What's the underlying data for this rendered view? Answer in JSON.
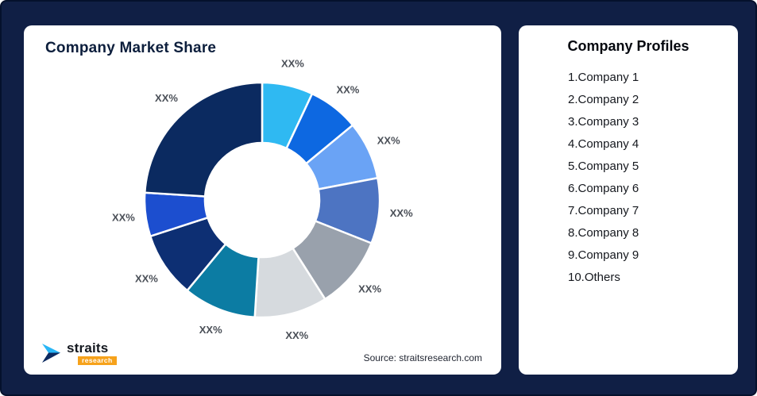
{
  "page": {
    "background_color": "#101f45"
  },
  "left_card": {
    "title": "Company Market Share",
    "source": "Source: straitsresearch.com",
    "logo": {
      "brand": "straits",
      "sub": "research",
      "icon_color": "#29b6f6",
      "icon_dark_color": "#0c2a60",
      "sub_bg_color": "#f6a21b"
    }
  },
  "right_card": {
    "title": "Company Profiles",
    "items": [
      "1.Company 1",
      "2.Company 2",
      "3.Company 3",
      "4.Company 4",
      "5.Company 5",
      "6.Company 6",
      "7.Company 7",
      "8.Company 8",
      "9.Company 9",
      "10.Others"
    ]
  },
  "chart_data": {
    "type": "pie",
    "donut": true,
    "title": "Company Market Share",
    "start_angle_deg": 0,
    "direction": "clockwise",
    "slices": [
      {
        "label": "XX%",
        "value": 7,
        "color": "#2fb9f2"
      },
      {
        "label": "XX%",
        "value": 7,
        "color": "#0d68e1"
      },
      {
        "label": "XX%",
        "value": 8,
        "color": "#6aa3f5"
      },
      {
        "label": "XX%",
        "value": 9,
        "color": "#4d74c2"
      },
      {
        "label": "XX%",
        "value": 10,
        "color": "#99a1ac"
      },
      {
        "label": "XX%",
        "value": 10,
        "color": "#d6dade"
      },
      {
        "label": "XX%",
        "value": 10,
        "color": "#0c7ca3"
      },
      {
        "label": "XX%",
        "value": 9,
        "color": "#0d2f73"
      },
      {
        "label": "XX%",
        "value": 6,
        "color": "#1c4ecf"
      },
      {
        "label": "XX%",
        "value": 24,
        "color": "#0b2a60"
      }
    ]
  }
}
